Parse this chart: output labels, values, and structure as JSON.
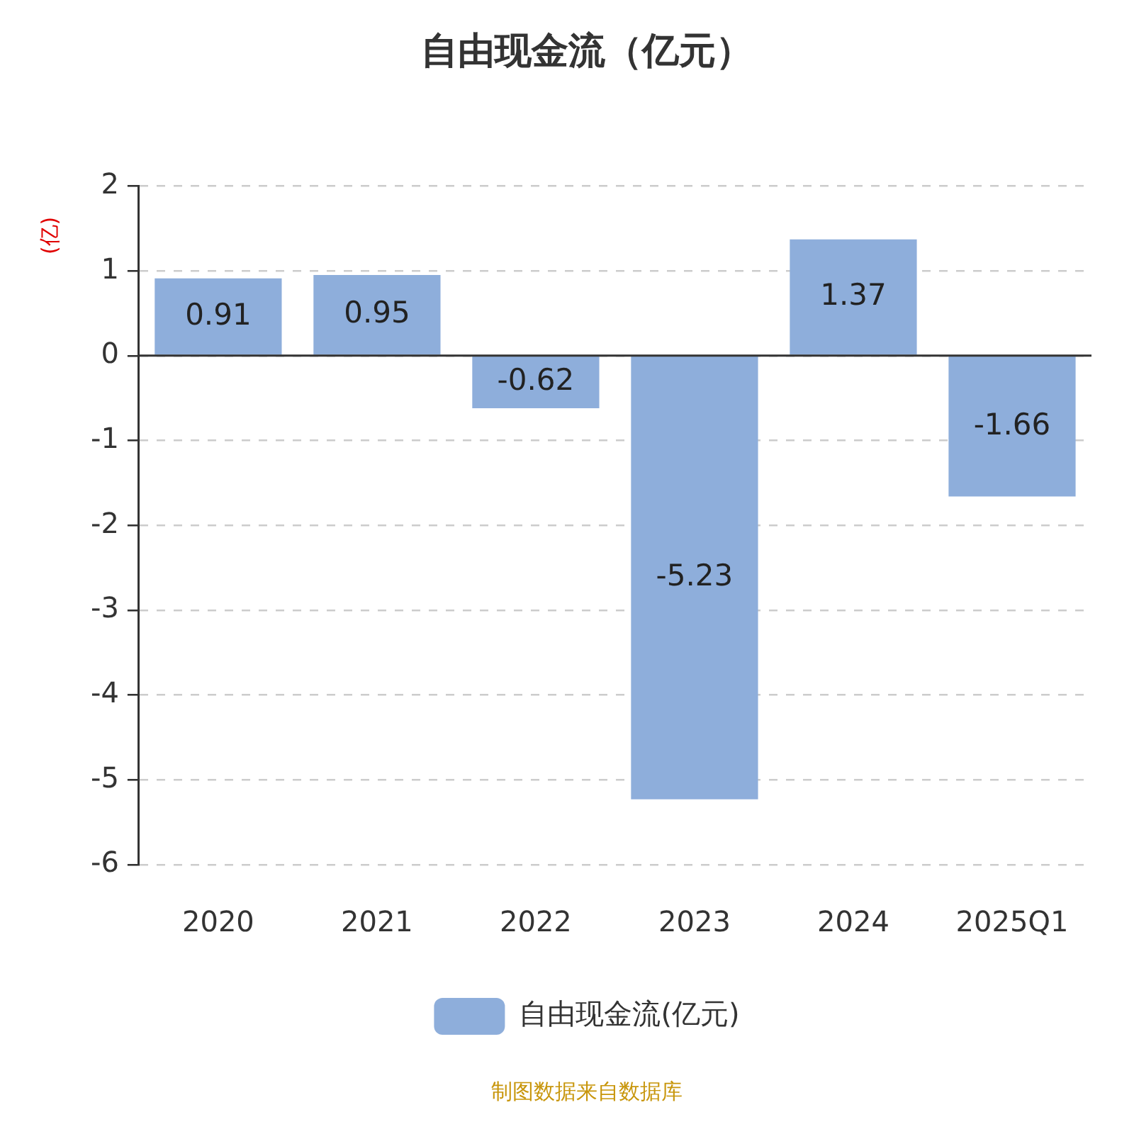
{
  "chart_data": {
    "type": "bar",
    "title": "自由现金流（亿元）",
    "ylabel": "(亿)",
    "categories": [
      "2020",
      "2021",
      "2022",
      "2023",
      "2024",
      "2025Q1"
    ],
    "series": [
      {
        "name": "自由现金流(亿元)",
        "color": "#8eaedb",
        "values": [
          0.91,
          0.95,
          -0.62,
          -5.23,
          1.37,
          -1.66
        ]
      }
    ],
    "ylim": [
      -6,
      2
    ],
    "yticks": [
      -6,
      -5,
      -4,
      -3,
      -2,
      -1,
      0,
      1,
      2
    ],
    "grid": "y",
    "legend": "bottom",
    "data_labels": true,
    "annotations": [
      "制图数据来自数据库"
    ]
  }
}
